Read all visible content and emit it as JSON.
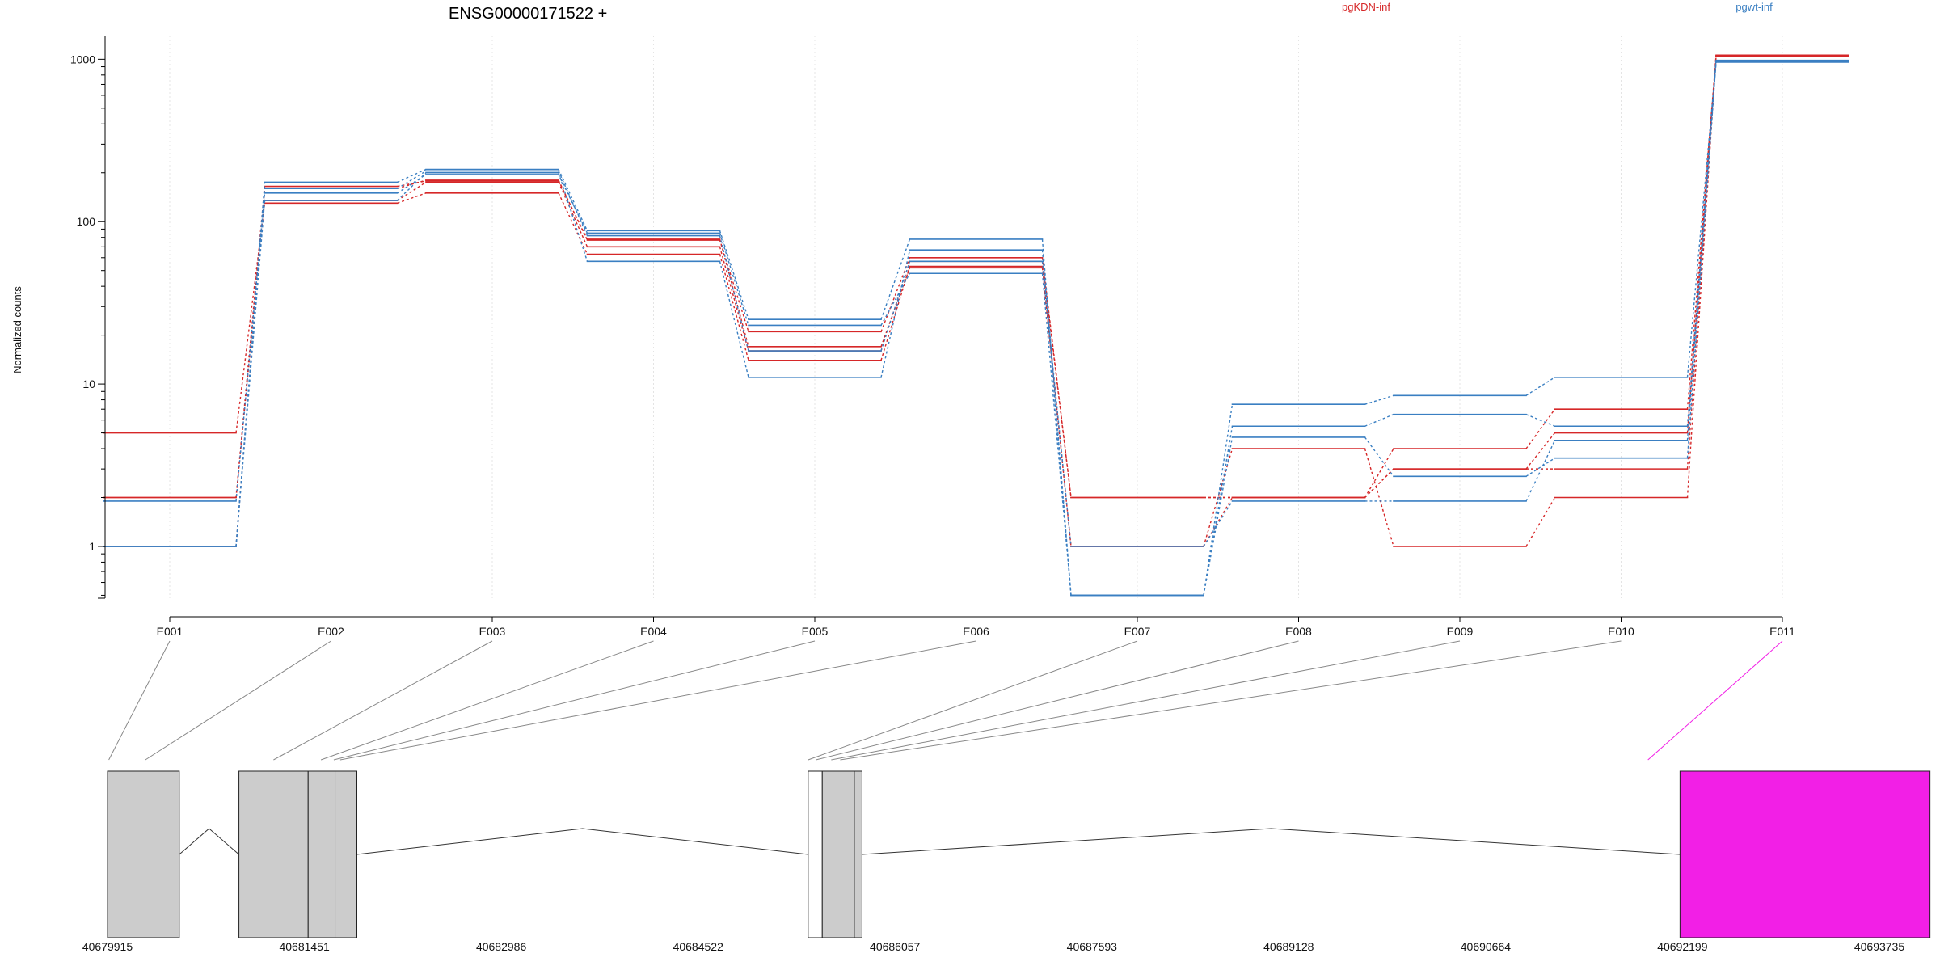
{
  "chart_data": {
    "type": "line",
    "title": "ENSG00000171522 +",
    "ylabel": "Normalized counts",
    "xlabel": "",
    "y_scale": "log",
    "ylim": [
      0.48,
      1400
    ],
    "y_ticks": [
      1,
      10,
      100,
      1000
    ],
    "y_tick_labels": [
      "1",
      "10",
      "100",
      "1000"
    ],
    "categories": [
      "E001",
      "E002",
      "E003",
      "E004",
      "E005",
      "E006",
      "E007",
      "E008",
      "E009",
      "E010",
      "E011"
    ],
    "legend": [
      {
        "name": "pgKDN-inf",
        "color": "#d62728"
      },
      {
        "name": "pgwt-inf",
        "color": "#3a7fc2"
      }
    ],
    "series": [
      {
        "group": "pgKDN-inf",
        "color": "#d62728",
        "values": [
          5.0,
          130,
          150,
          63,
          14,
          53,
          1.0,
          4.0,
          1.0,
          2.0,
          1050
        ]
      },
      {
        "group": "pgKDN-inf",
        "color": "#d62728",
        "values": [
          2.0,
          135,
          175,
          70,
          16,
          57,
          2.0,
          2.0,
          4.0,
          7.0,
          1060
        ]
      },
      {
        "group": "pgKDN-inf",
        "color": "#d62728",
        "values": [
          1.0,
          160,
          180,
          77,
          21,
          60,
          2.0,
          2.0,
          3.0,
          5.0,
          1040
        ]
      },
      {
        "group": "pgKDN-inf",
        "color": "#d62728",
        "values": [
          2.0,
          165,
          178,
          78,
          17,
          52,
          1.0,
          2.0,
          3.0,
          3.0,
          1045
        ]
      },
      {
        "group": "pgwt-inf",
        "color": "#3a7fc2",
        "values": [
          1.0,
          175,
          210,
          88,
          25,
          78,
          0.5,
          7.5,
          8.5,
          11,
          970
        ]
      },
      {
        "group": "pgwt-inf",
        "color": "#3a7fc2",
        "values": [
          1.0,
          135,
          200,
          57,
          11,
          67,
          0.5,
          5.5,
          6.5,
          5.5,
          985
        ]
      },
      {
        "group": "pgwt-inf",
        "color": "#3a7fc2",
        "values": [
          1.9,
          150,
          195,
          85,
          23,
          48,
          0.5,
          4.7,
          2.7,
          3.5,
          975
        ]
      },
      {
        "group": "pgwt-inf",
        "color": "#3a7fc2",
        "values": [
          1.0,
          160,
          205,
          82,
          16,
          57,
          1.0,
          1.9,
          1.9,
          4.5,
          960
        ]
      }
    ],
    "gene_model": {
      "coord_ticks": [
        40679915,
        40681451,
        40682986,
        40684522,
        40686057,
        40687593,
        40689128,
        40690664,
        40692199,
        40693735
      ],
      "exon_boxes": [
        {
          "start": 40679915,
          "end": 40680475,
          "fill": "#cccccc"
        },
        {
          "start": 40680940,
          "end": 40681480,
          "fill": "#cccccc"
        },
        {
          "start": 40681480,
          "end": 40681690,
          "fill": "#cccccc"
        },
        {
          "start": 40681690,
          "end": 40681860,
          "fill": "#cccccc"
        },
        {
          "start": 40685380,
          "end": 40685490,
          "fill": "#ffffff"
        },
        {
          "start": 40685490,
          "end": 40685740,
          "fill": "#cccccc"
        },
        {
          "start": 40685740,
          "end": 40685800,
          "fill": "#cccccc"
        },
        {
          "start": 40692180,
          "end": 40694130,
          "fill": "#f21fe6"
        }
      ],
      "introns": [
        {
          "start": 40680475,
          "end": 40680940
        },
        {
          "start": 40681860,
          "end": 40685380
        },
        {
          "start": 40685800,
          "end": 40692180
        }
      ],
      "exon_targets": [
        40679925,
        40680210,
        40681210,
        40681580,
        40681680,
        40681730,
        40685380,
        40685440,
        40685560,
        40685630,
        40691930
      ],
      "highlight_color": "#f21fe6"
    }
  }
}
